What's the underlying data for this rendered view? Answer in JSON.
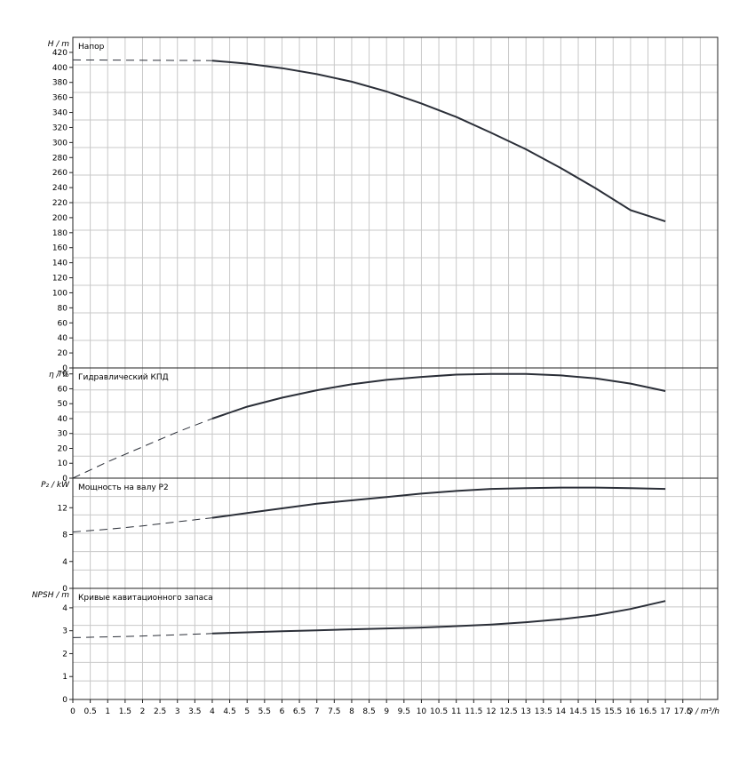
{
  "x_axis": {
    "label": "Q / m³/h",
    "min": 0,
    "max": 18.5,
    "step": 0.5,
    "ticks": [
      "0",
      "0.5",
      "1",
      "1.5",
      "2",
      "2.5",
      "3",
      "3.5",
      "4",
      "4.5",
      "5",
      "5.5",
      "6",
      "6.5",
      "7",
      "7.5",
      "8",
      "8.5",
      "9",
      "9.5",
      "10",
      "10.5",
      "11",
      "11.5",
      "12",
      "12.5",
      "13",
      "13.5",
      "14",
      "14.5",
      "15",
      "15.5",
      "16",
      "16.5",
      "17",
      "17.5"
    ]
  },
  "chart_data": [
    {
      "type": "line",
      "title": "Напор",
      "ylabel": "H / m",
      "ylim": [
        0,
        440
      ],
      "y_ticks": [
        0,
        20,
        40,
        60,
        80,
        100,
        120,
        140,
        160,
        180,
        200,
        220,
        240,
        260,
        280,
        300,
        320,
        340,
        360,
        380,
        400,
        420
      ],
      "dashed_until_x": 4,
      "series": [
        {
          "x": [
            0,
            4,
            5,
            6,
            7,
            8,
            9,
            10,
            11,
            12,
            13,
            14,
            15,
            16,
            17
          ],
          "y": [
            410,
            409,
            405,
            399,
            391,
            381,
            368,
            352,
            334,
            313,
            291,
            266,
            239,
            210,
            195
          ]
        }
      ]
    },
    {
      "type": "line",
      "title": "Гидравлический КПД",
      "ylabel": "η / %",
      "ylim": [
        0,
        74
      ],
      "y_ticks": [
        0,
        10,
        20,
        30,
        40,
        50,
        60,
        70
      ],
      "dashed_until_x": 4,
      "series": [
        {
          "x": [
            0,
            1,
            2,
            3,
            4,
            5,
            6,
            7,
            8,
            9,
            10,
            11,
            12,
            13,
            14,
            15,
            16,
            17
          ],
          "y": [
            0,
            11,
            21,
            31,
            40,
            48,
            54,
            59,
            63,
            66,
            68,
            69.5,
            70,
            70,
            69,
            67,
            63.5,
            58.5
          ]
        }
      ]
    },
    {
      "type": "line",
      "title": "Мощность на валу P2",
      "ylabel": "P₂ / kW",
      "ylim": [
        0,
        16.4
      ],
      "y_ticks": [
        0,
        4,
        8,
        12
      ],
      "dashed_until_x": 4,
      "series": [
        {
          "x": [
            0,
            1,
            2,
            3,
            4,
            5,
            6,
            7,
            8,
            9,
            10,
            11,
            12,
            13,
            14,
            15,
            16,
            17
          ],
          "y": [
            8.4,
            8.8,
            9.3,
            9.9,
            10.5,
            11.2,
            11.9,
            12.6,
            13.1,
            13.6,
            14.1,
            14.5,
            14.8,
            14.9,
            15.0,
            15.0,
            14.9,
            14.8
          ]
        }
      ]
    },
    {
      "type": "line",
      "title": "Кривые кавитационного запаса",
      "ylabel": "NPSH / m",
      "ylim": [
        0,
        4.85
      ],
      "y_ticks": [
        0,
        1,
        2,
        3,
        4
      ],
      "dashed_until_x": 4,
      "series": [
        {
          "x": [
            0,
            1,
            2,
            3,
            4,
            5,
            6,
            7,
            8,
            9,
            10,
            11,
            12,
            13,
            14,
            15,
            16,
            17
          ],
          "y": [
            2.7,
            2.73,
            2.77,
            2.82,
            2.88,
            2.93,
            2.98,
            3.02,
            3.06,
            3.1,
            3.14,
            3.2,
            3.27,
            3.37,
            3.5,
            3.68,
            3.95,
            4.3
          ]
        }
      ]
    }
  ]
}
